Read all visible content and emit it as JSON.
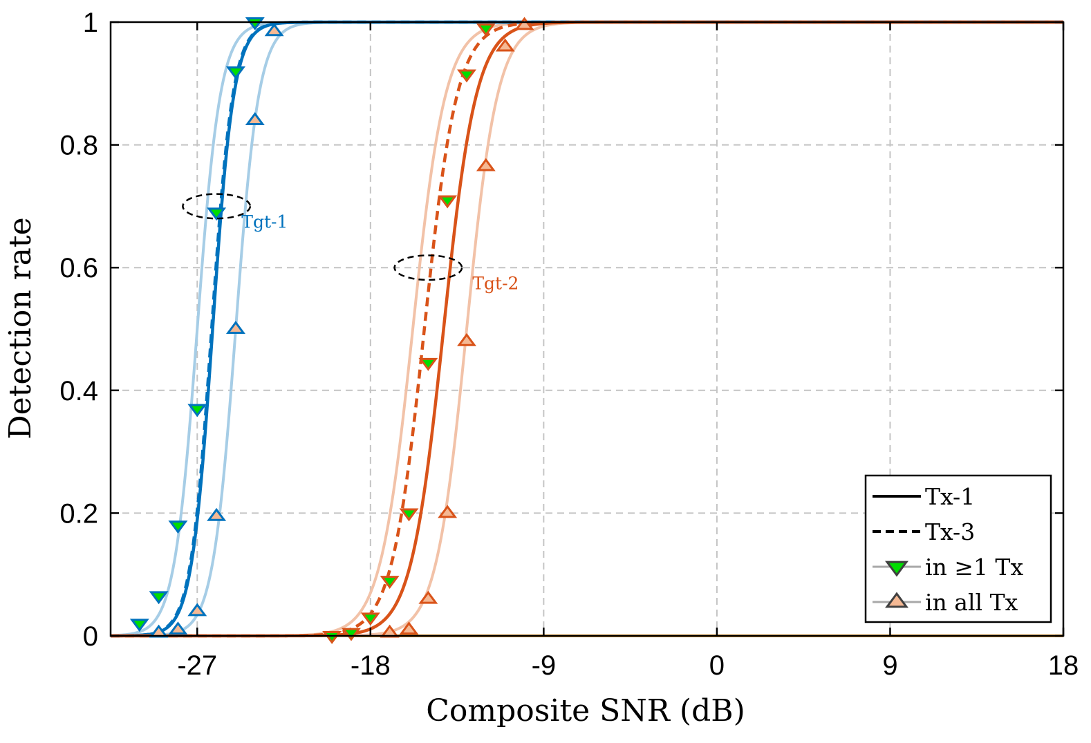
{
  "chart_data": {
    "type": "line",
    "title": "",
    "xlabel": "Composite SNR (dB)",
    "ylabel": "Detection rate",
    "xlim": [
      -31.5,
      18
    ],
    "ylim": [
      0,
      1
    ],
    "grid": true,
    "x_ticks": [
      -27,
      -18,
      -9,
      0,
      9,
      18
    ],
    "x_tick_labels": [
      "-27",
      "-18",
      "-9",
      "0",
      "9",
      "18"
    ],
    "y_ticks": [
      0,
      0.2,
      0.4,
      0.6,
      0.8,
      1
    ],
    "y_tick_labels": [
      "0",
      "0.2",
      "0.4",
      "0.6",
      "0.8",
      "1"
    ],
    "colors": {
      "tgt1": "#0072BD",
      "tgt1_light": "#A6CDE6",
      "tgt2": "#D95319",
      "tgt2_light": "#F2C2A8",
      "marker_any_fill": "#00DD00",
      "marker_all_fill": "#F5B994",
      "zero_line": "#D99025",
      "grid": "#C4C4C4"
    },
    "sigmoid_model": "P = 1 / (1 + exp(-(SNR - midpoint) / scale))",
    "series": [
      {
        "name": "Tgt-1 Tx-1",
        "target": "Tgt-1",
        "tx": "Tx-1",
        "style": "solid",
        "color": "#0072BD",
        "midpoint": -26.2,
        "scale": 0.55
      },
      {
        "name": "Tgt-1 Tx-3",
        "target": "Tgt-1",
        "tx": "Tx-3",
        "style": "dashed",
        "color": "#0072BD",
        "midpoint": -26.25,
        "scale": 0.55
      },
      {
        "name": "Tgt-1 in ≥1 Tx",
        "target": "Tgt-1",
        "kind": "any",
        "color": "#A6CDE6",
        "midpoint": -27.0,
        "scale": 0.6,
        "points": [
          [
            -30.0,
            0.02
          ],
          [
            -29.0,
            0.065
          ],
          [
            -28.0,
            0.18
          ],
          [
            -27.0,
            0.37
          ],
          [
            -26.0,
            0.69
          ],
          [
            -25.0,
            0.92
          ],
          [
            -24.0,
            1.0
          ]
        ]
      },
      {
        "name": "Tgt-1 in all Tx",
        "target": "Tgt-1",
        "kind": "all",
        "color": "#A6CDE6",
        "midpoint": -25.0,
        "scale": 0.6,
        "points": [
          [
            -29.0,
            0.005
          ],
          [
            -28.0,
            0.01
          ],
          [
            -27.0,
            0.04
          ],
          [
            -26.0,
            0.195
          ],
          [
            -25.0,
            0.5
          ],
          [
            -24.0,
            0.84
          ],
          [
            -23.0,
            0.985
          ]
        ]
      },
      {
        "name": "Tgt-2 Tx-1",
        "target": "Tgt-2",
        "tx": "Tx-1",
        "style": "solid",
        "color": "#D95319",
        "midpoint": -14.2,
        "scale": 0.85
      },
      {
        "name": "Tgt-2 Tx-3",
        "target": "Tgt-2",
        "tx": "Tx-3",
        "style": "dashed",
        "color": "#D95319",
        "midpoint": -15.2,
        "scale": 0.85
      },
      {
        "name": "Tgt-2 in ≥1 Tx",
        "target": "Tgt-2",
        "kind": "any",
        "color": "#F2C2A8",
        "midpoint": -15.8,
        "scale": 0.85,
        "points": [
          [
            -20.0,
            0.0
          ],
          [
            -19.0,
            0.005
          ],
          [
            -18.0,
            0.03
          ],
          [
            -17.0,
            0.09
          ],
          [
            -16.0,
            0.2
          ],
          [
            -15.0,
            0.445
          ],
          [
            -14.0,
            0.71
          ],
          [
            -13.0,
            0.915
          ],
          [
            -12.0,
            0.99
          ]
        ]
      },
      {
        "name": "Tgt-2 in all Tx",
        "target": "Tgt-2",
        "kind": "all",
        "color": "#F2C2A8",
        "midpoint": -13.0,
        "scale": 0.8,
        "points": [
          [
            -17.0,
            0.005
          ],
          [
            -16.0,
            0.01
          ],
          [
            -15.0,
            0.06
          ],
          [
            -14.0,
            0.2
          ],
          [
            -13.0,
            0.48
          ],
          [
            -12.0,
            0.765
          ],
          [
            -11.0,
            0.96
          ],
          [
            -10.0,
            0.995
          ]
        ]
      }
    ],
    "zero_line": {
      "y": 0,
      "color": "#D99025"
    },
    "annotations": [
      {
        "text": "Tgt-1",
        "color": "#0072BD",
        "ellipse_center": [
          -26.0,
          0.7
        ],
        "ellipse_rx": 1.75,
        "ellipse_ry": 0.02,
        "text_at": [
          -24.7,
          0.665
        ]
      },
      {
        "text": "Tgt-2",
        "color": "#D95319",
        "ellipse_center": [
          -15.0,
          0.6
        ],
        "ellipse_rx": 1.75,
        "ellipse_ry": 0.02,
        "text_at": [
          -12.7,
          0.565
        ]
      }
    ],
    "legend": {
      "location": "bottom-right",
      "entries": [
        {
          "label": "Tx-1",
          "kind": "solid-line"
        },
        {
          "label": "Tx-3",
          "kind": "dashed-line"
        },
        {
          "label": "in ≥1 Tx",
          "kind": "marker-down"
        },
        {
          "label": "in all Tx",
          "kind": "marker-up"
        }
      ]
    }
  }
}
